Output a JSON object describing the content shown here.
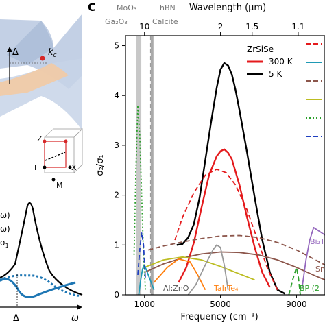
{
  "panel_label": "C",
  "left_panel": {
    "delta_label": "Δ",
    "kc_label": "k",
    "kc_sub": "c",
    "bz_labels": {
      "z": "Z",
      "gamma": "Γ",
      "x": "X",
      "m": "M"
    },
    "conductivity_labels": [
      "ω)",
      "ω)",
      "σ"
    ],
    "conductivity_sub": "1",
    "axis_delta": "Δ",
    "axis_omega": "ω"
  },
  "chart_data": {
    "type": "line",
    "xlabel": "Frequency (cm⁻¹)",
    "ylabel": "σ₂/σ₁",
    "top_axis_label": "Wavelength (μm)",
    "xlim": [
      0,
      10500
    ],
    "ylim": [
      0,
      5.2
    ],
    "x_ticks": [
      1000,
      5000,
      9000
    ],
    "x_tick_labels": [
      "1000",
      "5000",
      "9000"
    ],
    "y_ticks": [
      0,
      1,
      2,
      3,
      4,
      5
    ],
    "y_tick_labels": [
      "0",
      "1",
      "2",
      "3",
      "4",
      "5"
    ],
    "top_ticks": [
      10,
      2,
      1.5,
      1.1
    ],
    "top_tick_labels": [
      "10",
      "2",
      "1.5",
      "1.1"
    ],
    "legend_title": "ZrSiSe",
    "legend_position": "top-right",
    "series": [
      {
        "name": "300 K",
        "style": "solid",
        "color": "#e41a1c",
        "x": [
          2800,
          3200,
          3600,
          4000,
          4400,
          4800,
          5000,
          5200,
          5400,
          5600,
          6000,
          6400,
          6800,
          7200,
          7600
        ],
        "y": [
          0.25,
          0.55,
          1.05,
          1.75,
          2.4,
          2.78,
          2.88,
          2.92,
          2.85,
          2.72,
          2.2,
          1.55,
          0.95,
          0.45,
          0.15
        ]
      },
      {
        "name": "5 K",
        "style": "solid",
        "color": "#000000",
        "x": [
          2700,
          3000,
          3300,
          3600,
          3900,
          4200,
          4500,
          4800,
          5000,
          5200,
          5400,
          5600,
          5800,
          6000,
          6400,
          6800,
          7200,
          7600,
          8000,
          8400
        ],
        "y": [
          1.0,
          1.02,
          1.15,
          1.42,
          1.95,
          2.7,
          3.45,
          4.15,
          4.52,
          4.65,
          4.6,
          4.42,
          4.1,
          3.7,
          2.85,
          1.95,
          1.1,
          0.45,
          0.1,
          0.02
        ]
      },
      {
        "name": "ZrSiSe (dashed, red)",
        "style": "dashed",
        "color": "#e41a1c",
        "x": [
          2600,
          3000,
          3600,
          4200,
          4800,
          5300,
          5800,
          6400,
          7000,
          7500,
          8000
        ],
        "y": [
          1.1,
          1.55,
          2.05,
          2.4,
          2.52,
          2.45,
          2.2,
          1.7,
          1.05,
          0.5,
          0.1
        ]
      },
      {
        "name": "brown (dashed)",
        "style": "dashed",
        "color": "#8c564b",
        "x": [
          1200,
          2000,
          3000,
          4000,
          5000,
          6000,
          7000,
          8000,
          9000,
          10000,
          10500
        ],
        "y": [
          0.9,
          0.98,
          1.06,
          1.13,
          1.18,
          1.19,
          1.15,
          1.05,
          0.9,
          0.7,
          0.6
        ]
      },
      {
        "name": "brown (solid)",
        "style": "solid",
        "color": "#8c564b",
        "x": [
          1000,
          2000,
          3000,
          4000,
          5000,
          6000,
          7000,
          8000,
          9000,
          10000,
          10500
        ],
        "y": [
          0.45,
          0.62,
          0.74,
          0.82,
          0.86,
          0.85,
          0.8,
          0.7,
          0.55,
          0.38,
          0.3
        ]
      },
      {
        "name": "olive",
        "style": "solid",
        "color": "#bcbd22",
        "x": [
          1000,
          2000,
          3000,
          4000,
          5000,
          6000,
          6800
        ],
        "y": [
          0.55,
          0.7,
          0.76,
          0.7,
          0.57,
          0.42,
          0.3
        ]
      },
      {
        "name": "TaIrTe4",
        "style": "solid",
        "color": "#ff7f0e",
        "x": [
          1500,
          2200,
          2800,
          3400,
          3800,
          4200
        ],
        "y": [
          0.25,
          0.55,
          0.72,
          0.66,
          0.4,
          0.1
        ]
      },
      {
        "name": "Al:ZnO",
        "style": "solid",
        "color": "#999999",
        "x": [
          3300,
          3700,
          4200,
          4600,
          4800,
          5000,
          5200,
          5400
        ],
        "y": [
          0.0,
          0.2,
          0.6,
          0.9,
          1.0,
          0.95,
          0.6,
          0.1
        ]
      },
      {
        "name": "teal",
        "style": "solid",
        "color": "#1f9ab5",
        "x": [
          700,
          800,
          900,
          1000,
          1100,
          1300,
          1500
        ],
        "y": [
          0.0,
          0.3,
          0.52,
          0.6,
          0.5,
          0.3,
          0.1
        ]
      },
      {
        "name": "green (dotted)",
        "style": "dotted",
        "color": "#2ca02c",
        "x": [
          450,
          550,
          650,
          750,
          850,
          950,
          1050
        ],
        "y": [
          0.8,
          2.5,
          3.8,
          3.2,
          2.0,
          0.8,
          0.1
        ]
      },
      {
        "name": "blue (dashed)",
        "style": "dashed",
        "color": "#1f3fbf",
        "x": [
          650,
          750,
          850,
          950,
          1050
        ],
        "y": [
          0.4,
          0.9,
          1.25,
          1.0,
          0.3
        ]
      },
      {
        "name": "Bi2Te",
        "style": "solid",
        "color": "#9467bd",
        "x": [
          9300,
          9500,
          9700,
          9900,
          10100,
          10500
        ],
        "y": [
          0.15,
          0.7,
          1.1,
          1.35,
          1.3,
          1.2
        ]
      },
      {
        "name": "BP",
        "style": "dashed",
        "color": "#2ca02c",
        "x": [
          8600,
          8800,
          9000,
          9100,
          9200
        ],
        "y": [
          0.0,
          0.3,
          0.55,
          0.35,
          0.0
        ]
      }
    ],
    "legend_entries": [
      {
        "label": "300 K",
        "color": "#e41a1c",
        "style": "solid"
      },
      {
        "label": "5 K",
        "color": "#000000",
        "style": "solid"
      }
    ],
    "right_legend_swatches": [
      {
        "color": "#e41a1c",
        "style": "dashed"
      },
      {
        "color": "#1f9ab5",
        "style": "solid"
      },
      {
        "color": "#8c564b",
        "style": "dashed"
      },
      {
        "color": "#bcbd22",
        "style": "solid"
      },
      {
        "color": "#2ca02c",
        "style": "dotted"
      },
      {
        "color": "#1f3fbf",
        "style": "dashed"
      }
    ],
    "vertical_lines": [
      {
        "x": 640,
        "color": "#c8c8c8",
        "style": "solid",
        "label": "Ga₂O₃"
      },
      {
        "x": 760,
        "color": "#c8c8c8",
        "style": "solid",
        "label": "MoO₃"
      },
      {
        "x": 1350,
        "color": "#999999",
        "style": "dashed",
        "label": "hBN"
      },
      {
        "x": 1400,
        "color": "#aaaaaa",
        "style": "solid",
        "label": "Calcite"
      }
    ],
    "annotations": [
      {
        "text": "Al:ZnO",
        "color": "#555555"
      },
      {
        "text": "TaIrTe₄",
        "color": "#ff7f0e"
      },
      {
        "text": "BP (2",
        "color": "#2ca02c"
      },
      {
        "text": "Bi₂T",
        "color": "#9467bd"
      },
      {
        "text": "Sn",
        "color": "#8c564b"
      }
    ]
  }
}
